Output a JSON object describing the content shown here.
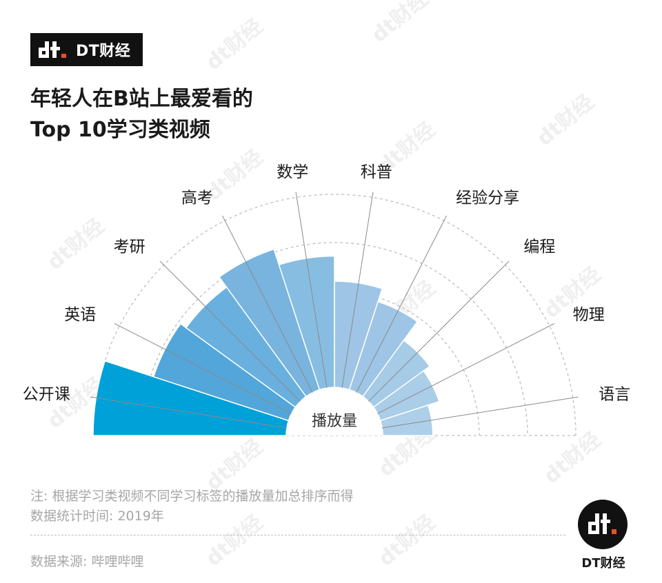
{
  "brand": {
    "name": "DT财经",
    "logo_icon": "dt-logo-icon"
  },
  "title": {
    "line1": "年轻人在B站上最爱看的",
    "line2": "Top 10学习类视频"
  },
  "chart_data": {
    "type": "polar-bar",
    "center_label": "播放量",
    "categories": [
      "公开课",
      "英语",
      "考研",
      "高考",
      "数学",
      "科普",
      "经验分享",
      "编程",
      "物理",
      "语言"
    ],
    "values": [
      100,
      73.5,
      70,
      76.5,
      68,
      55,
      48,
      36,
      32,
      26
    ],
    "ylim": [
      0,
      100
    ],
    "grid": true,
    "colors": [
      "#00a0d9",
      "#52a6d9",
      "#69b0df",
      "#78b4de",
      "#88bde2",
      "#9ec5e5",
      "#9ec5e5",
      "#a6cbe7",
      "#aacde8",
      "#adcfe9"
    ]
  },
  "notes": {
    "note1": "注: 根据学习类视频不同学习标签的播放量加总排序而得",
    "note2": "数据统计时间: 2019年",
    "source": "数据来源: 哔哩哔哩"
  },
  "watermark_text": "dt财经"
}
